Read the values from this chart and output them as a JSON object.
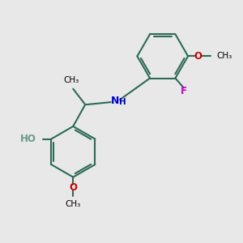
{
  "bg_color": "#e8e8e8",
  "bond_color": "#2d6b55",
  "bond_width": 1.5,
  "N_color": "#0000cc",
  "O_color": "#cc0000",
  "F_color": "#cc00cc",
  "H_color": "#6a9a8a",
  "text_color": "#000000",
  "figsize": [
    3.0,
    3.0
  ],
  "dpi": 100,
  "xlim": [
    0,
    10
  ],
  "ylim": [
    0,
    10
  ]
}
